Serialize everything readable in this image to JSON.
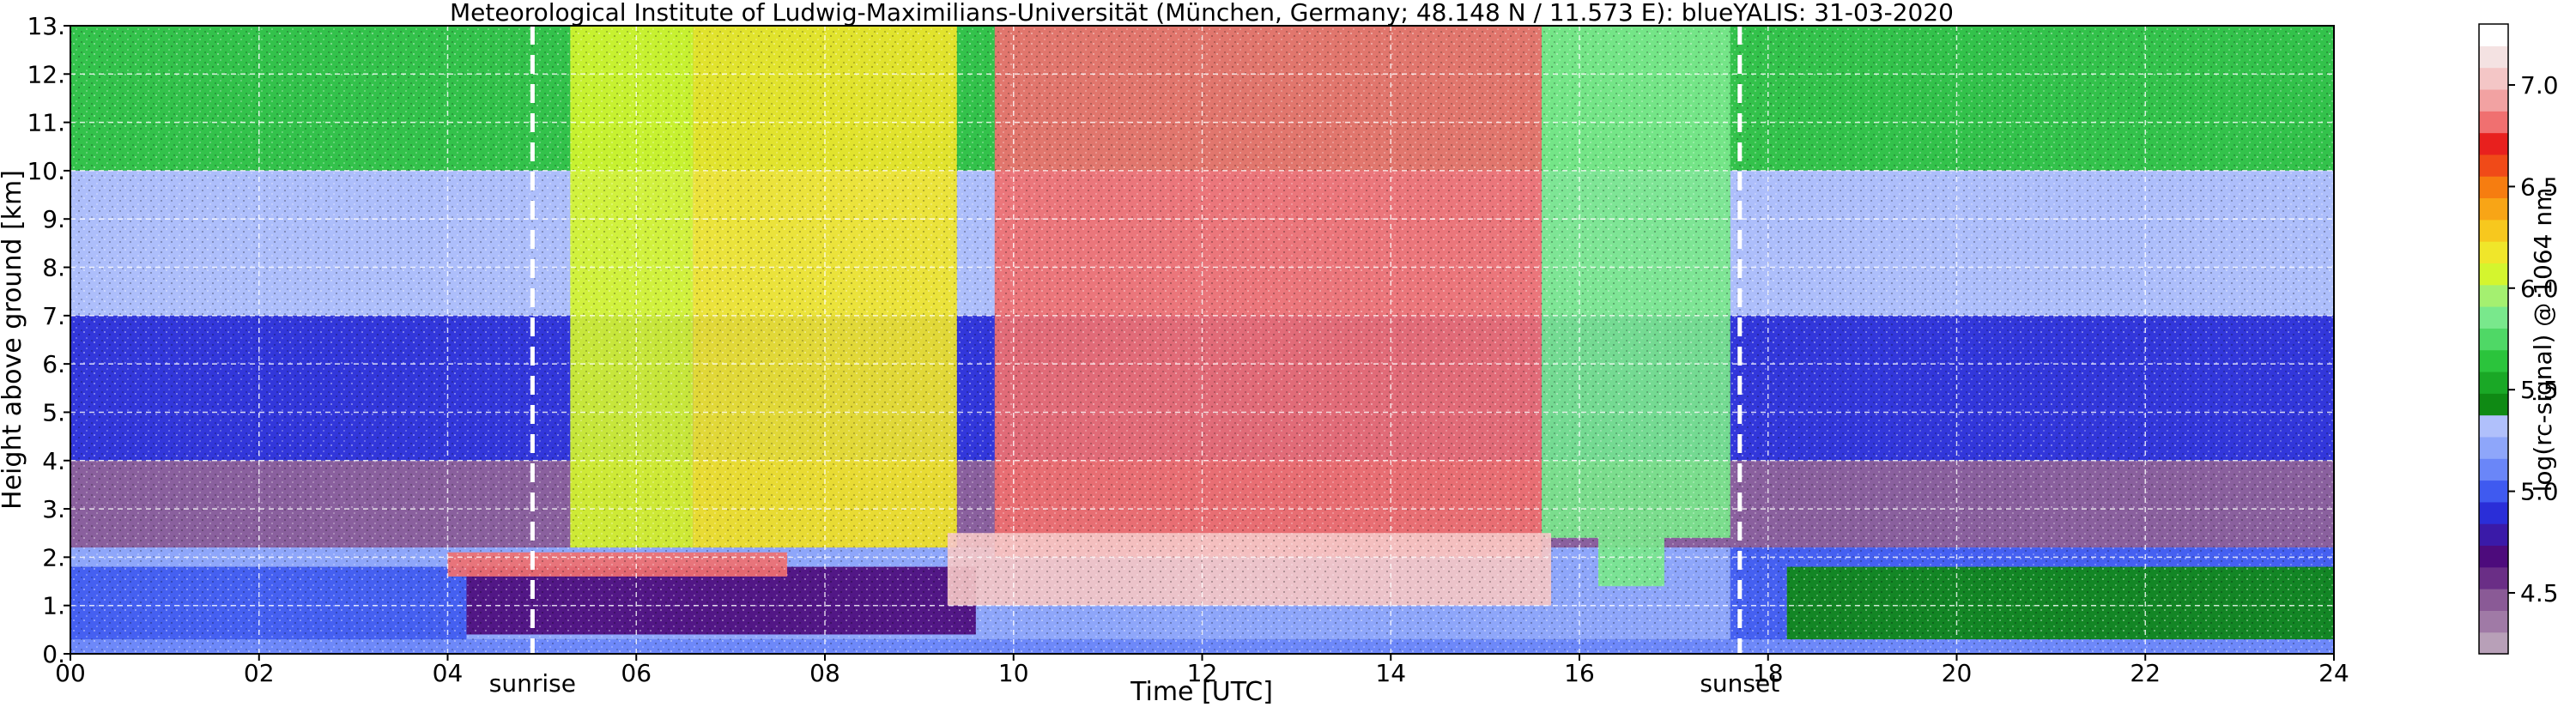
{
  "chart_data": {
    "type": "heatmap",
    "title": "Meteorological Institute of Ludwig-Maximilians-Universität (München, Germany; 48.148 N / 11.573 E):     blueYALIS: 31-03-2020",
    "xlabel": "Time [UTC]",
    "ylabel": "Height above ground [km]",
    "xlim": [
      0,
      24
    ],
    "ylim": [
      0,
      13
    ],
    "x_ticks": [
      {
        "value": 0,
        "label": "00"
      },
      {
        "value": 2,
        "label": "02"
      },
      {
        "value": 4,
        "label": "04"
      },
      {
        "value": 6,
        "label": "06"
      },
      {
        "value": 8,
        "label": "08"
      },
      {
        "value": 10,
        "label": "10"
      },
      {
        "value": 12,
        "label": "12"
      },
      {
        "value": 14,
        "label": "14"
      },
      {
        "value": 16,
        "label": "16"
      },
      {
        "value": 18,
        "label": "18"
      },
      {
        "value": 20,
        "label": "20"
      },
      {
        "value": 22,
        "label": "22"
      },
      {
        "value": 24,
        "label": "24"
      }
    ],
    "y_ticks": [
      {
        "value": 0,
        "label": "0."
      },
      {
        "value": 1,
        "label": "1."
      },
      {
        "value": 2,
        "label": "2."
      },
      {
        "value": 3,
        "label": "3."
      },
      {
        "value": 4,
        "label": "4."
      },
      {
        "value": 5,
        "label": "5."
      },
      {
        "value": 6,
        "label": "6."
      },
      {
        "value": 7,
        "label": "7."
      },
      {
        "value": 8,
        "label": "8."
      },
      {
        "value": 9,
        "label": "9."
      },
      {
        "value": 10,
        "label": "10."
      },
      {
        "value": 11,
        "label": "11."
      },
      {
        "value": 12,
        "label": "12."
      },
      {
        "value": 13,
        "label": "13."
      }
    ],
    "grid": true,
    "annotations": [
      {
        "x": 4.9,
        "label": "sunrise"
      },
      {
        "x": 17.7,
        "label": "sunset"
      }
    ],
    "colorbar": {
      "label": "log(rc-signal) @ 1064 nm",
      "range": [
        4.2,
        7.3
      ],
      "ticks": [
        {
          "value": 4.5,
          "label": "4.5"
        },
        {
          "value": 5.0,
          "label": "5.0"
        },
        {
          "value": 5.5,
          "label": "5.5"
        },
        {
          "value": 6.0,
          "label": "6.0"
        },
        {
          "value": 6.5,
          "label": "6.5"
        },
        {
          "value": 7.0,
          "label": "7.0"
        }
      ],
      "colors": [
        "#b8a0b8",
        "#a07aa6",
        "#8a5a96",
        "#6a2e86",
        "#4d0b7c",
        "#3a1aa8",
        "#2a2ed8",
        "#3f5af0",
        "#6a86f8",
        "#8ea6fa",
        "#b0c0fb",
        "#0f8a14",
        "#1aa826",
        "#2bc43c",
        "#4fd866",
        "#79e88c",
        "#a4f070",
        "#d4f52e",
        "#f0e62a",
        "#f7c81e",
        "#f8a516",
        "#f67d10",
        "#f04a18",
        "#e8201e",
        "#f07070",
        "#f2a2a2",
        "#f4c6c6",
        "#f4e2e2",
        "#ffffff"
      ]
    },
    "regions": [
      {
        "t0": 0,
        "t1": 24,
        "h0": 10,
        "h1": 13,
        "value": 5.6
      },
      {
        "t0": 0,
        "t1": 24,
        "h0": 7,
        "h1": 10,
        "value": 5.3
      },
      {
        "t0": 0,
        "t1": 24,
        "h0": 4,
        "h1": 7,
        "value": 4.9
      },
      {
        "t0": 0,
        "t1": 24,
        "h0": 2.2,
        "h1": 4,
        "value": 4.5
      },
      {
        "t0": 5.3,
        "t1": 6.6,
        "h0": 2.2,
        "h1": 13,
        "value": 6.1
      },
      {
        "t0": 6.6,
        "t1": 9.4,
        "h0": 2.2,
        "h1": 13,
        "value": 6.2
      },
      {
        "t0": 9.8,
        "t1": 15.6,
        "h0": 2.0,
        "h1": 13,
        "value": 6.8
      },
      {
        "t0": 15.6,
        "t1": 17.6,
        "h0": 2.4,
        "h1": 13,
        "value": 5.9
      },
      {
        "t0": 0,
        "t1": 4.2,
        "h0": 0.3,
        "h1": 1.8,
        "value": 5.0
      },
      {
        "t0": 4.2,
        "t1": 9.6,
        "h0": 0.4,
        "h1": 1.8,
        "value": 4.7
      },
      {
        "t0": 17.6,
        "t1": 24,
        "h0": 0.3,
        "h1": 2.2,
        "value": 5.0
      },
      {
        "t0": 18.2,
        "t1": 24,
        "h0": 0.3,
        "h1": 1.8,
        "value": 5.4
      },
      {
        "t0": 0,
        "t1": 24,
        "h0": 0,
        "h1": 0.3,
        "value": 5.1
      },
      {
        "t0": 4.0,
        "t1": 7.6,
        "h0": 1.6,
        "h1": 2.1,
        "value": 6.8
      },
      {
        "t0": 9.3,
        "t1": 15.7,
        "h0": 1.0,
        "h1": 2.5,
        "value": 7.0
      },
      {
        "t0": 16.2,
        "t1": 16.9,
        "h0": 1.4,
        "h1": 2.4,
        "value": 5.9
      }
    ]
  }
}
